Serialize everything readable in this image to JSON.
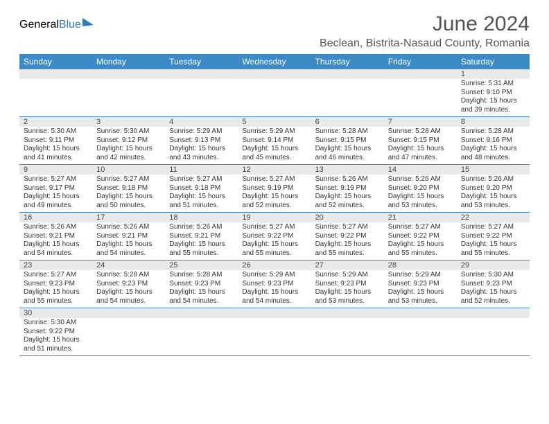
{
  "logo": {
    "part1": "General",
    "part2": "Blue"
  },
  "title": "June 2024",
  "location": "Beclean, Bistrita-Nasaud County, Romania",
  "weekdays": [
    "Sunday",
    "Monday",
    "Tuesday",
    "Wednesday",
    "Thursday",
    "Friday",
    "Saturday"
  ],
  "colors": {
    "header_bg": "#3c8ac6",
    "header_text": "#ffffff",
    "daynum_bg": "#e9e9e9",
    "cell_border": "#3c8ac6",
    "body_text": "#333333",
    "title_text": "#545454"
  },
  "labels": {
    "sunrise": "Sunrise:",
    "sunset": "Sunset:",
    "daylight": "Daylight:"
  },
  "weeks": [
    [
      null,
      null,
      null,
      null,
      null,
      null,
      {
        "day": "1",
        "sunrise": "5:31 AM",
        "sunset": "9:10 PM",
        "daylight": "15 hours and 39 minutes."
      }
    ],
    [
      {
        "day": "2",
        "sunrise": "5:30 AM",
        "sunset": "9:11 PM",
        "daylight": "15 hours and 41 minutes."
      },
      {
        "day": "3",
        "sunrise": "5:30 AM",
        "sunset": "9:12 PM",
        "daylight": "15 hours and 42 minutes."
      },
      {
        "day": "4",
        "sunrise": "5:29 AM",
        "sunset": "9:13 PM",
        "daylight": "15 hours and 43 minutes."
      },
      {
        "day": "5",
        "sunrise": "5:29 AM",
        "sunset": "9:14 PM",
        "daylight": "15 hours and 45 minutes."
      },
      {
        "day": "6",
        "sunrise": "5:28 AM",
        "sunset": "9:15 PM",
        "daylight": "15 hours and 46 minutes."
      },
      {
        "day": "7",
        "sunrise": "5:28 AM",
        "sunset": "9:15 PM",
        "daylight": "15 hours and 47 minutes."
      },
      {
        "day": "8",
        "sunrise": "5:28 AM",
        "sunset": "9:16 PM",
        "daylight": "15 hours and 48 minutes."
      }
    ],
    [
      {
        "day": "9",
        "sunrise": "5:27 AM",
        "sunset": "9:17 PM",
        "daylight": "15 hours and 49 minutes."
      },
      {
        "day": "10",
        "sunrise": "5:27 AM",
        "sunset": "9:18 PM",
        "daylight": "15 hours and 50 minutes."
      },
      {
        "day": "11",
        "sunrise": "5:27 AM",
        "sunset": "9:18 PM",
        "daylight": "15 hours and 51 minutes."
      },
      {
        "day": "12",
        "sunrise": "5:27 AM",
        "sunset": "9:19 PM",
        "daylight": "15 hours and 52 minutes."
      },
      {
        "day": "13",
        "sunrise": "5:26 AM",
        "sunset": "9:19 PM",
        "daylight": "15 hours and 52 minutes."
      },
      {
        "day": "14",
        "sunrise": "5:26 AM",
        "sunset": "9:20 PM",
        "daylight": "15 hours and 53 minutes."
      },
      {
        "day": "15",
        "sunrise": "5:26 AM",
        "sunset": "9:20 PM",
        "daylight": "15 hours and 53 minutes."
      }
    ],
    [
      {
        "day": "16",
        "sunrise": "5:26 AM",
        "sunset": "9:21 PM",
        "daylight": "15 hours and 54 minutes."
      },
      {
        "day": "17",
        "sunrise": "5:26 AM",
        "sunset": "9:21 PM",
        "daylight": "15 hours and 54 minutes."
      },
      {
        "day": "18",
        "sunrise": "5:26 AM",
        "sunset": "9:21 PM",
        "daylight": "15 hours and 55 minutes."
      },
      {
        "day": "19",
        "sunrise": "5:27 AM",
        "sunset": "9:22 PM",
        "daylight": "15 hours and 55 minutes."
      },
      {
        "day": "20",
        "sunrise": "5:27 AM",
        "sunset": "9:22 PM",
        "daylight": "15 hours and 55 minutes."
      },
      {
        "day": "21",
        "sunrise": "5:27 AM",
        "sunset": "9:22 PM",
        "daylight": "15 hours and 55 minutes."
      },
      {
        "day": "22",
        "sunrise": "5:27 AM",
        "sunset": "9:22 PM",
        "daylight": "15 hours and 55 minutes."
      }
    ],
    [
      {
        "day": "23",
        "sunrise": "5:27 AM",
        "sunset": "9:23 PM",
        "daylight": "15 hours and 55 minutes."
      },
      {
        "day": "24",
        "sunrise": "5:28 AM",
        "sunset": "9:23 PM",
        "daylight": "15 hours and 54 minutes."
      },
      {
        "day": "25",
        "sunrise": "5:28 AM",
        "sunset": "9:23 PM",
        "daylight": "15 hours and 54 minutes."
      },
      {
        "day": "26",
        "sunrise": "5:29 AM",
        "sunset": "9:23 PM",
        "daylight": "15 hours and 54 minutes."
      },
      {
        "day": "27",
        "sunrise": "5:29 AM",
        "sunset": "9:23 PM",
        "daylight": "15 hours and 53 minutes."
      },
      {
        "day": "28",
        "sunrise": "5:29 AM",
        "sunset": "9:23 PM",
        "daylight": "15 hours and 53 minutes."
      },
      {
        "day": "29",
        "sunrise": "5:30 AM",
        "sunset": "9:23 PM",
        "daylight": "15 hours and 52 minutes."
      }
    ],
    [
      {
        "day": "30",
        "sunrise": "5:30 AM",
        "sunset": "9:22 PM",
        "daylight": "15 hours and 51 minutes."
      },
      null,
      null,
      null,
      null,
      null,
      null
    ]
  ]
}
